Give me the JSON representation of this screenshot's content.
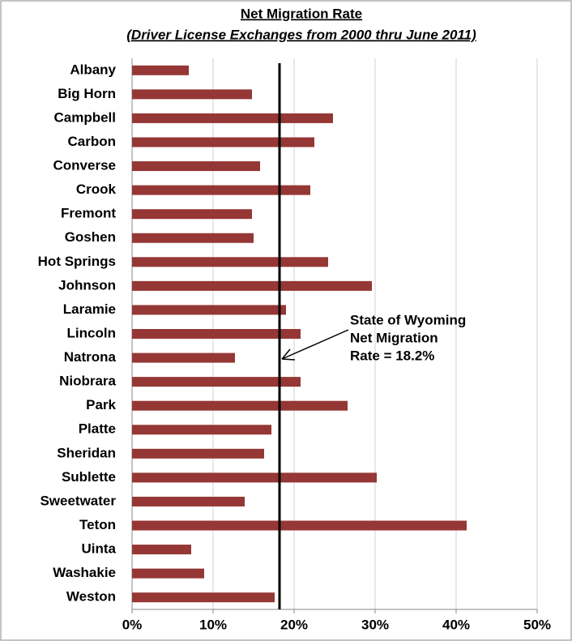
{
  "chart_data": {
    "type": "barh",
    "title": "Net Migration Rate",
    "subtitle": "(Driver License Exchanges from 2000 thru June 2011)",
    "categories": [
      "Albany",
      "Big Horn",
      "Campbell",
      "Carbon",
      "Converse",
      "Crook",
      "Fremont",
      "Goshen",
      "Hot Springs",
      "Johnson",
      "Laramie",
      "Lincoln",
      "Natrona",
      "Niobrara",
      "Park",
      "Platte",
      "Sheridan",
      "Sublette",
      "Sweetwater",
      "Teton",
      "Uinta",
      "Washakie",
      "Weston"
    ],
    "values": [
      7.0,
      14.8,
      24.8,
      22.5,
      15.8,
      22.0,
      14.8,
      15.0,
      24.2,
      29.6,
      19.0,
      20.8,
      12.7,
      20.8,
      26.6,
      17.2,
      16.3,
      30.2,
      13.9,
      41.3,
      7.3,
      8.9,
      17.6
    ],
    "color": "#953735",
    "xlim": [
      0,
      50
    ],
    "xticks": [
      {
        "value": 0,
        "label": "0%"
      },
      {
        "value": 10,
        "label": "10%"
      },
      {
        "value": 20,
        "label": "20%"
      },
      {
        "value": 30,
        "label": "30%"
      },
      {
        "value": 40,
        "label": "40%"
      },
      {
        "value": 50,
        "label": "50%"
      }
    ],
    "grid": true,
    "reference_line": {
      "value": 18.2,
      "color": "#000000"
    },
    "annotation": [
      "State of Wyoming",
      "Net Migration",
      "Rate = 18.2%"
    ]
  }
}
